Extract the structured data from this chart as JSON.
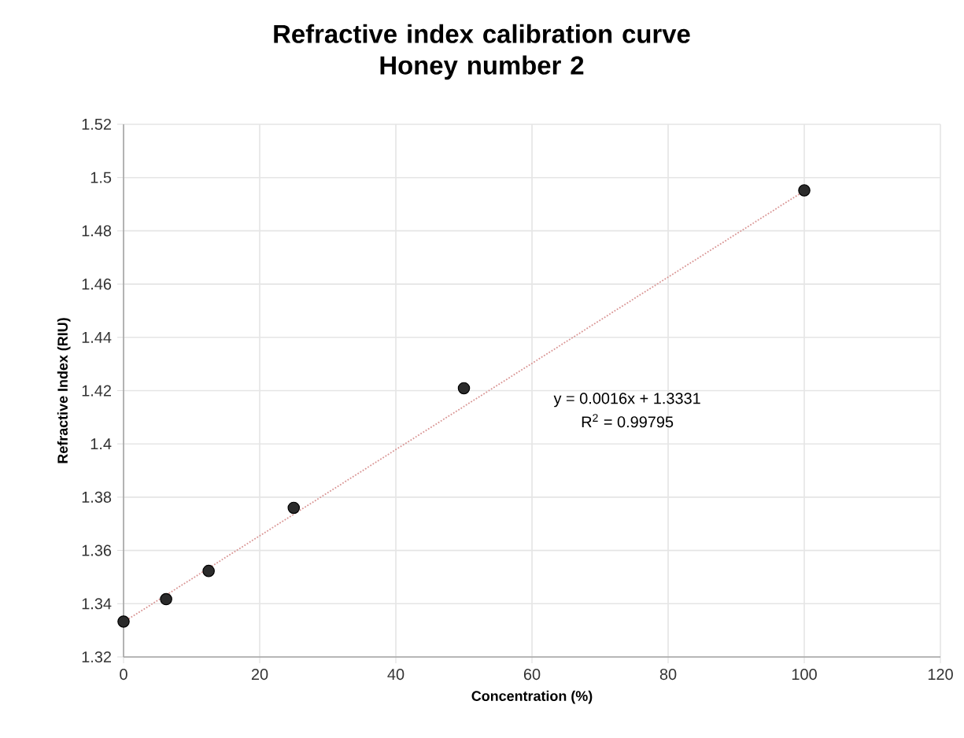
{
  "chart_data": {
    "type": "scatter",
    "title": "Refractive index calibration curve\nHoney number 2",
    "xlabel": "Concentration (%)",
    "ylabel": "Refractive Index (RIU)",
    "annotations": [
      "y = 0.0016x + 1.3331",
      "R$^{2}$ = 0.99795"
    ],
    "series": [
      {
        "color": "#2b2b2b",
        "marker": "circle",
        "x": [
          0,
          6.25,
          12.5,
          25,
          50,
          100
        ],
        "values": [
          1.3333,
          1.3417,
          1.3523,
          1.376,
          1.4209,
          1.4952
        ]
      },
      {
        "type": "line",
        "color": "#d99594",
        "marker": "none",
        "line_style": "dotted",
        "x": [
          0,
          100
        ],
        "values": [
          1.3331,
          1.495
        ]
      }
    ],
    "xlim": [
      0,
      120
    ],
    "xticks": [
      0,
      20,
      40,
      60,
      80,
      100,
      120
    ],
    "ylim": [
      1.32,
      1.52
    ],
    "yticks": [
      1.32,
      1.34,
      1.36,
      1.38,
      1.4,
      1.42,
      1.44,
      1.46,
      1.48,
      1.5,
      1.52
    ],
    "grid": true
  }
}
